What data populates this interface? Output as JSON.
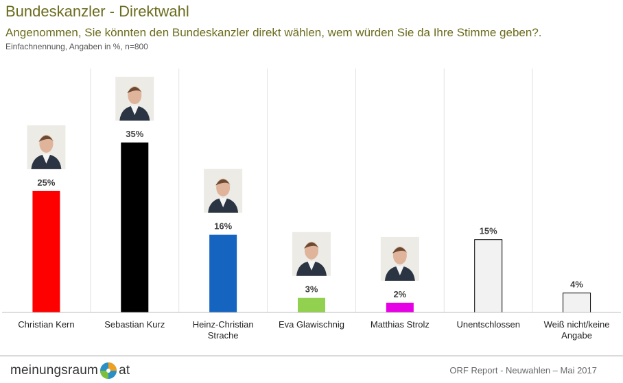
{
  "title": "Bundeskanzler - Direktwahl",
  "subtitle": "Angenommen, Sie könnten den Bundeskanzler direkt wählen, wem würden Sie da Ihre Stimme geben?.",
  "note": "Einfachnennung, Angaben in %, n=800",
  "footer": {
    "logo_left": "meinungsraum",
    "logo_right": "at",
    "source": "ORF Report - Neuwahlen – Mai 2017"
  },
  "chart_data": {
    "type": "bar",
    "categories": [
      "Christian Kern",
      "Sebastian Kurz",
      "Heinz-Christian Strache",
      "Eva Glawischnig",
      "Matthias Strolz",
      "Unentschlossen",
      "Weiß nicht/keine Angabe"
    ],
    "category_lines": [
      [
        "Christian Kern"
      ],
      [
        "Sebastian Kurz"
      ],
      [
        "Heinz-Christian",
        "Strache"
      ],
      [
        "Eva Glawischnig"
      ],
      [
        "Matthias Strolz"
      ],
      [
        "Unentschlossen"
      ],
      [
        "Weiß nicht/keine",
        "Angabe"
      ]
    ],
    "values": [
      25,
      35,
      16,
      3,
      2,
      15,
      4
    ],
    "value_labels": [
      "25%",
      "35%",
      "16%",
      "3%",
      "2%",
      "15%",
      "4%"
    ],
    "colors": [
      "#ff0000",
      "#000000",
      "#1565c0",
      "#92d050",
      "#e600e6",
      "#f2f2f2",
      "#f2f2f2"
    ],
    "outlined": [
      false,
      false,
      false,
      false,
      false,
      true,
      true
    ],
    "portrait": [
      true,
      true,
      true,
      true,
      true,
      false,
      false
    ],
    "ylim": [
      0,
      35
    ],
    "grid": false,
    "legend": "none"
  }
}
